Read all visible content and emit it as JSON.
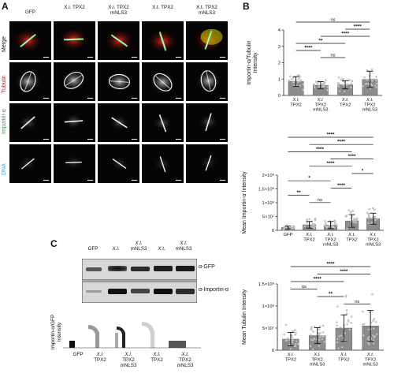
{
  "panelA": {
    "letter": "A",
    "columns": [
      {
        "line1": "GFP",
        "line2": ""
      },
      {
        "line1": "X.l. TPX2",
        "line2": ""
      },
      {
        "line1": "X.l. TPX2",
        "line2": "mNLS3"
      },
      {
        "line1": "X.t. TPX2",
        "line2": ""
      },
      {
        "line1": "X.t. TPX2",
        "line2": "mNLS3"
      }
    ],
    "rows": [
      {
        "label": "Merge",
        "color": "#111111"
      },
      {
        "label": "Tubulin",
        "color": "#d0101a"
      },
      {
        "label": "Importin-α",
        "color": "#27a33a"
      },
      {
        "label": "DNA",
        "color": "#2aa7d8"
      }
    ]
  },
  "panelB": {
    "letter": "B"
  },
  "panelC": {
    "letter": "C",
    "lanes": [
      {
        "line1": "GFP",
        "line2": ""
      },
      {
        "line1": "X.l.",
        "line2": ""
      },
      {
        "line1": "X.l.",
        "line2": "mNLS3"
      },
      {
        "line1": "X.t.",
        "line2": ""
      },
      {
        "line1": "X.t.",
        "line2": "mNLS3"
      }
    ],
    "blot_labels": [
      "α-GFP",
      "α-Importin-α"
    ],
    "ylabel_line1": "Importin-α/GFP",
    "ylabel_line2": "Intensity",
    "xcats": [
      {
        "line1": "GFP",
        "line2": "",
        "line3": ""
      },
      {
        "line1": "X.l.",
        "line2": "TPX2",
        "line3": ""
      },
      {
        "line1": "X.l.",
        "line2": "TPX2",
        "line3": "mNLS3"
      },
      {
        "line1": "X.t.",
        "line2": "TPX2",
        "line3": ""
      },
      {
        "line1": "X.t.",
        "line2": "TPX2",
        "line3": "mNLS3"
      }
    ]
  },
  "chart_data": [
    {
      "type": "bar",
      "ylabel_line1": "Importin-α/Tubulin",
      "ylabel_line2": "Intensity",
      "ylim": [
        0,
        4
      ],
      "yticks": [
        "0",
        "1",
        "2",
        "3",
        "4"
      ],
      "categories": [
        {
          "line1": "X.l.",
          "line2": "TPX2",
          "line3": ""
        },
        {
          "line1": "X.l.",
          "line2": "TPX2",
          "line3": "mNLS3"
        },
        {
          "line1": "X.t.",
          "line2": "TPX2",
          "line3": ""
        },
        {
          "line1": "X.t.",
          "line2": "TPX2",
          "line3": "mNLS3"
        }
      ],
      "values": [
        0.85,
        0.62,
        0.65,
        0.98
      ],
      "errors": [
        0.3,
        0.22,
        0.25,
        0.5
      ],
      "significance": [
        {
          "from": 0,
          "to": 3,
          "label": "ns"
        },
        {
          "from": 2,
          "to": 3,
          "label": "****"
        },
        {
          "from": 1,
          "to": 3,
          "label": "****"
        },
        {
          "from": 0,
          "to": 2,
          "label": "**"
        },
        {
          "from": 0,
          "to": 1,
          "label": "****"
        },
        {
          "from": 1,
          "to": 2,
          "label": "ns"
        }
      ]
    },
    {
      "type": "bar",
      "ylabel": "Mean Importin-α Intensity",
      "ylim": [
        0,
        200000000
      ],
      "yticks": [
        "0",
        "5×10⁷",
        "1×10⁸",
        "1.5×10⁸",
        "2×10⁸"
      ],
      "categories": [
        {
          "line1": "GFP",
          "line2": "",
          "line3": ""
        },
        {
          "line1": "X.l.",
          "line2": "TPX2",
          "line3": ""
        },
        {
          "line1": "X.l.",
          "line2": "TPX2",
          "line3": "mNLS3"
        },
        {
          "line1": "X.t.",
          "line2": "TPX2",
          "line3": ""
        },
        {
          "line1": "X.t.",
          "line2": "TPX2",
          "line3": "mNLS3"
        }
      ],
      "values": [
        10000000,
        20000000,
        19000000,
        34000000,
        42000000
      ],
      "errors": [
        5000000,
        12000000,
        13000000,
        23000000,
        20000000
      ],
      "significance": [
        {
          "from": 0,
          "to": 4,
          "label": "****"
        },
        {
          "from": 1,
          "to": 4,
          "label": "****"
        },
        {
          "from": 0,
          "to": 3,
          "label": "****"
        },
        {
          "from": 2,
          "to": 4,
          "label": "****"
        },
        {
          "from": 1,
          "to": 3,
          "label": "****"
        },
        {
          "from": 3,
          "to": 4,
          "label": "*"
        },
        {
          "from": 0,
          "to": 2,
          "label": "*"
        },
        {
          "from": 2,
          "to": 3,
          "label": "****"
        },
        {
          "from": 0,
          "to": 1,
          "label": "**"
        },
        {
          "from": 1,
          "to": 2,
          "label": "ns"
        }
      ]
    },
    {
      "type": "bar",
      "ylabel": "Mean Tubulin Intensity",
      "ylim": [
        0,
        150000000
      ],
      "yticks": [
        "0",
        "5×10⁷",
        "1×10⁸",
        "1.5×10⁸"
      ],
      "categories": [
        {
          "line1": "X.l.",
          "line2": "TPX2",
          "line3": ""
        },
        {
          "line1": "X.l.",
          "line2": "TPX2",
          "line3": "mNLS3"
        },
        {
          "line1": "X.t.",
          "line2": "TPX2",
          "line3": ""
        },
        {
          "line1": "X.t.",
          "line2": "TPX2",
          "line3": "mNLS3"
        }
      ],
      "values": [
        25000000,
        33000000,
        50000000,
        55000000
      ],
      "errors": [
        15000000,
        18000000,
        30000000,
        35000000
      ],
      "significance": [
        {
          "from": 0,
          "to": 3,
          "label": "****"
        },
        {
          "from": 1,
          "to": 3,
          "label": "****"
        },
        {
          "from": 0,
          "to": 2,
          "label": "****"
        },
        {
          "from": 0,
          "to": 1,
          "label": "ns"
        },
        {
          "from": 1,
          "to": 2,
          "label": "**"
        },
        {
          "from": 2,
          "to": 3,
          "label": "ns"
        }
      ]
    }
  ]
}
